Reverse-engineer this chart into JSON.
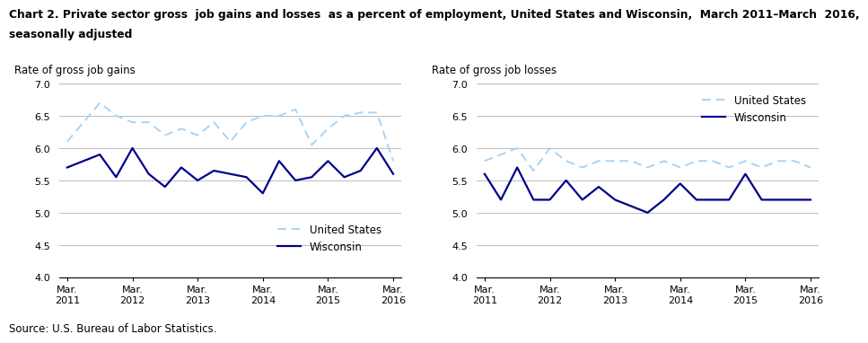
{
  "title_line1": "Chart 2. Private sector gross  job gains and losses  as a percent of employment, United States and Wisconsin,  March 2011–March  2016,",
  "title_line2": "seasonally adjusted",
  "left_ylabel": "Rate of gross job gains",
  "right_ylabel": "Rate of gross job losses",
  "source": "Source: U.S. Bureau of Labor Statistics.",
  "xtick_labels": [
    "Mar.\n2011",
    "Mar.\n2012",
    "Mar.\n2013",
    "Mar.\n2014",
    "Mar.\n2015",
    "Mar.\n2016"
  ],
  "ylim": [
    4.0,
    7.0
  ],
  "yticks": [
    4.0,
    4.5,
    5.0,
    5.5,
    6.0,
    6.5,
    7.0
  ],
  "us_color": "#a8d4f5",
  "wi_color": "#00008B",
  "n_points": 21,
  "gains_us": [
    6.1,
    6.4,
    6.7,
    6.5,
    6.4,
    6.4,
    6.2,
    6.3,
    6.2,
    6.4,
    6.1,
    6.4,
    6.5,
    6.5,
    6.6,
    6.05,
    6.3,
    6.5,
    6.55,
    6.55,
    5.8
  ],
  "gains_wi": [
    5.7,
    5.8,
    5.9,
    5.55,
    6.0,
    5.6,
    5.4,
    5.7,
    5.5,
    5.65,
    5.6,
    5.55,
    5.3,
    5.8,
    5.5,
    5.55,
    5.8,
    5.55,
    5.65,
    6.0,
    5.6
  ],
  "losses_us": [
    5.8,
    5.9,
    6.0,
    5.65,
    6.0,
    5.8,
    5.7,
    5.8,
    5.8,
    5.8,
    5.7,
    5.8,
    5.7,
    5.8,
    5.8,
    5.7,
    5.8,
    5.7,
    5.8,
    5.8,
    5.7
  ],
  "losses_wi": [
    5.6,
    5.2,
    5.7,
    5.2,
    5.2,
    5.5,
    5.2,
    5.4,
    5.2,
    5.1,
    5.0,
    5.2,
    5.45,
    5.2,
    5.2,
    5.2,
    5.6,
    5.2,
    5.2,
    5.2,
    5.2
  ]
}
